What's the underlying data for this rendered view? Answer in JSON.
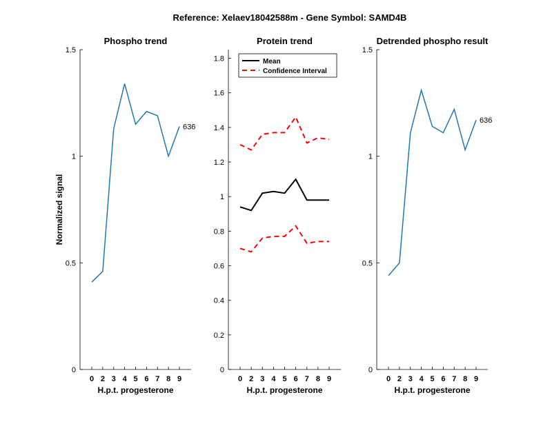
{
  "figure_title": "Reference:  Xelaev18042588m - Gene Symbol:  SAMD4B",
  "chart_data": [
    {
      "type": "line",
      "title": "Phospho trend",
      "xlabel": "H.p.t. progesterone",
      "ylabel": "Normalized signal",
      "categories": [
        "0",
        "2",
        "3",
        "4",
        "5",
        "6",
        "7",
        "8",
        "9"
      ],
      "ylim": [
        0,
        1.5
      ],
      "yticks": [
        0,
        0.5,
        1,
        1.5
      ],
      "ytick_labels": [
        "0",
        "0.5",
        "1",
        "1.5"
      ],
      "series": [
        {
          "color": "#1f77b4",
          "dash": false,
          "values": [
            0.41,
            0.46,
            1.13,
            1.34,
            1.15,
            1.21,
            1.19,
            1.0,
            1.14
          ]
        }
      ],
      "annotation": "636"
    },
    {
      "type": "line",
      "title": "Protein trend",
      "xlabel": "H.p.t. progesterone",
      "ylabel": "",
      "categories": [
        "0",
        "2",
        "3",
        "4",
        "5",
        "6",
        "7",
        "8",
        "9"
      ],
      "ylim": [
        0,
        1.85
      ],
      "yticks": [
        0,
        0.2,
        0.4,
        0.6,
        0.8,
        1,
        1.2,
        1.4,
        1.6,
        1.8
      ],
      "ytick_labels": [
        "0",
        "0.2",
        "0.4",
        "0.6",
        "0.8",
        "1",
        "1.2",
        "1.4",
        "1.6",
        "1.8"
      ],
      "legend": {
        "placement": "top-left",
        "entries": [
          "Mean",
          "Confidence Interval"
        ]
      },
      "series": [
        {
          "name": "Mean",
          "color": "#000000",
          "dash": false,
          "values": [
            0.94,
            0.92,
            1.02,
            1.03,
            1.02,
            1.1,
            0.98,
            0.98,
            0.98
          ]
        },
        {
          "name": "Confidence Interval",
          "color": "#ff0000",
          "dash": true,
          "values": [
            1.3,
            1.27,
            1.36,
            1.37,
            1.37,
            1.46,
            1.31,
            1.34,
            1.33
          ]
        },
        {
          "color": "#ff0000",
          "dash": true,
          "values": [
            0.7,
            0.68,
            0.76,
            0.77,
            0.77,
            0.83,
            0.73,
            0.74,
            0.74
          ]
        }
      ]
    },
    {
      "type": "line",
      "title": "Detrended phospho result",
      "xlabel": "H.p.t. progesterone",
      "ylabel": "",
      "categories": [
        "0",
        "2",
        "3",
        "4",
        "5",
        "6",
        "7",
        "8",
        "9"
      ],
      "ylim": [
        0,
        1.5
      ],
      "yticks": [
        0,
        0.5,
        1,
        1.5
      ],
      "ytick_labels": [
        "0",
        "0.5",
        "1",
        "1.5"
      ],
      "series": [
        {
          "color": "#1f77b4",
          "dash": false,
          "values": [
            0.44,
            0.5,
            1.11,
            1.31,
            1.14,
            1.11,
            1.22,
            1.03,
            1.17
          ]
        }
      ],
      "annotation": "636"
    }
  ]
}
